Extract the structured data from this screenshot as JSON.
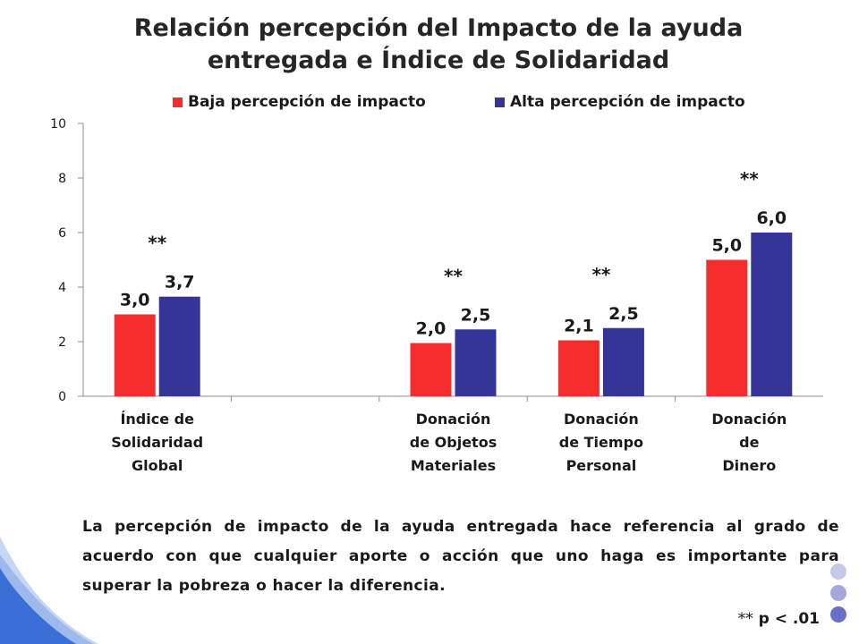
{
  "title_line1": "Relación  percepción del Impacto de la ayuda",
  "title_line2": "entregada e Índice de Solidaridad",
  "legend": [
    {
      "label": "Baja percepción de impacto",
      "color": "#f42c2c"
    },
    {
      "label": "Alta percepción de impacto",
      "color": "#343499"
    }
  ],
  "chart_data": {
    "type": "bar",
    "title": "Relación percepción del Impacto de la ayuda entregada e Índice de Solidaridad",
    "categories": [
      [
        "Índice de",
        "Solidaridad",
        "Global"
      ],
      [],
      [
        "Donación",
        "de Objetos",
        "Materiales"
      ],
      [
        "Donación",
        "de Tiempo",
        "Personal"
      ],
      [
        "Donación",
        "de",
        "Dinero"
      ]
    ],
    "series": [
      {
        "name": "Baja percepción de impacto",
        "color": "#f42c2c",
        "values": [
          3.0,
          null,
          1.95,
          2.05,
          5.0
        ],
        "labels": [
          "3,0",
          "",
          "2,0",
          "2,1",
          "5,0"
        ]
      },
      {
        "name": "Alta percepción de impacto",
        "color": "#343499",
        "values": [
          3.65,
          null,
          2.45,
          2.5,
          6.0
        ],
        "labels": [
          "3,7",
          "",
          "2,5",
          "2,5",
          "6,0"
        ]
      }
    ],
    "significance": [
      "**",
      "",
      "**",
      "**",
      "**"
    ],
    "yticks": [
      "0",
      "2",
      "4",
      "6",
      "8",
      "10"
    ],
    "ylim": [
      0,
      10
    ],
    "xlabel": "",
    "ylabel": "",
    "legend_position": "top"
  },
  "caption": "La percepción de impacto de la ayuda entregada hace referencia al grado de acuerdo con que cualquier aporte o acción que uno haga es importante para superar la pobreza o hacer la diferencia.",
  "footnote_stars": "**",
  "footnote_text": "p < .01"
}
